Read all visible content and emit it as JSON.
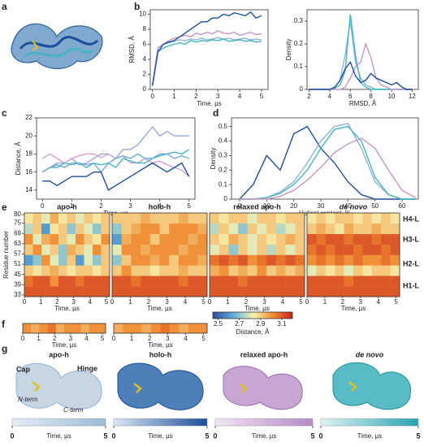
{
  "panel_labels": [
    "a",
    "b",
    "c",
    "d",
    "e",
    "f",
    "g"
  ],
  "chart_data": [
    {
      "type": "line",
      "xlabel": "Time, µs",
      "ylabel": "RMSD, Å",
      "x": [
        0,
        0.25,
        0.5,
        0.75,
        1,
        1.25,
        1.5,
        1.75,
        2,
        2.25,
        2.5,
        2.75,
        3,
        3.25,
        3.5,
        3.75,
        4,
        4.25,
        4.5,
        4.75,
        5
      ],
      "xlim": [
        -0.1,
        5.3
      ],
      "xticks": [
        0,
        1,
        2,
        3,
        4,
        5
      ],
      "ylim": [
        0,
        10.6
      ],
      "yticks": [
        0,
        2,
        4,
        6,
        8,
        10
      ],
      "series": [
        {
          "color": "#8fb3d9",
          "values": [
            0.5,
            5.5,
            6,
            6.2,
            6.4,
            6.6,
            6.5,
            6.7,
            6.6,
            6.8,
            6.6,
            6.7,
            6.9,
            6.7,
            6.8,
            6.6,
            6.7,
            6.8,
            6.6,
            6.7,
            6.6
          ]
        },
        {
          "color": "#41b6c4",
          "values": [
            0.5,
            5,
            5.5,
            5.8,
            6,
            6.2,
            6,
            6.5,
            6.3,
            6.5,
            6.4,
            6.6,
            6.5,
            6.7,
            6.4,
            6.5,
            6.6,
            6.4,
            6.5,
            6.3,
            6.4
          ]
        },
        {
          "color": "#c994c7",
          "values": [
            0.5,
            5.5,
            6,
            6.5,
            6.8,
            7,
            7.2,
            7,
            7.5,
            7.3,
            7.6,
            7.4,
            7.8,
            7.5,
            7.4,
            7.6,
            7.2,
            7.4,
            7.6,
            7.3,
            7.4
          ]
        },
        {
          "color": "#1b4f9c",
          "values": [
            0.5,
            5,
            6,
            6.3,
            6.5,
            7,
            7.5,
            8,
            8.5,
            9,
            9,
            9.5,
            9.5,
            10,
            9.8,
            10.2,
            10,
            9.8,
            10.3,
            9.5,
            9.8
          ]
        }
      ]
    },
    {
      "type": "line",
      "xlabel": "RMSD, Å",
      "ylabel": "Density",
      "x": [
        2,
        2.5,
        3,
        3.5,
        4,
        4.5,
        5,
        5.5,
        6,
        6.5,
        7,
        7.5,
        8,
        8.5,
        9,
        9.5,
        10,
        10.5,
        11,
        11.5,
        12
      ],
      "xlim": [
        1.8,
        12.6
      ],
      "xticks": [
        2,
        4,
        6,
        8,
        10,
        12
      ],
      "ylim": [
        0,
        0.35
      ],
      "yticks": [
        0,
        0.1,
        0.2,
        0.3
      ],
      "series": [
        {
          "color": "#8fb3d9",
          "values": [
            0,
            0,
            0,
            0,
            0,
            0.01,
            0.04,
            0.15,
            0.3,
            0.12,
            0.05,
            0.02,
            0.01,
            0,
            0,
            0,
            0,
            0,
            0,
            0,
            0
          ]
        },
        {
          "color": "#41b6c4",
          "values": [
            0,
            0,
            0,
            0,
            0,
            0.005,
            0.02,
            0.08,
            0.33,
            0.15,
            0.03,
            0.01,
            0,
            0,
            0,
            0,
            0,
            0,
            0,
            0,
            0
          ]
        },
        {
          "color": "#c994c7",
          "values": [
            0,
            0,
            0,
            0,
            0,
            0,
            0,
            0.01,
            0.05,
            0.1,
            0.12,
            0.2,
            0.14,
            0.05,
            0.02,
            0.01,
            0,
            0,
            0,
            0,
            0
          ]
        },
        {
          "color": "#1b4f9c",
          "values": [
            0,
            0,
            0,
            0,
            0,
            0.01,
            0.04,
            0.09,
            0.12,
            0.06,
            0.03,
            0.04,
            0.07,
            0.05,
            0.04,
            0.03,
            0.02,
            0.03,
            0.01,
            0,
            0
          ]
        }
      ]
    },
    {
      "type": "line",
      "xlabel": "Time, µs",
      "ylabel": "Distance, Å",
      "x": [
        0,
        0.25,
        0.5,
        0.75,
        1,
        1.25,
        1.5,
        1.75,
        2,
        2.25,
        2.5,
        2.75,
        3,
        3.25,
        3.5,
        3.75,
        4,
        4.25,
        4.5,
        4.75,
        5
      ],
      "xlim": [
        -0.2,
        5.2
      ],
      "xticks": [
        0,
        1,
        2,
        3,
        4,
        5
      ],
      "ylim": [
        13,
        22
      ],
      "yticks": [
        14,
        16,
        18,
        20,
        22
      ],
      "series": [
        {
          "color": "#9aa8d8",
          "values": [
            16,
            16.5,
            17,
            17,
            17.5,
            16.8,
            17,
            17.5,
            18,
            18,
            17.5,
            18.5,
            18.5,
            19,
            20,
            21,
            20,
            20.5,
            20,
            20,
            20
          ]
        },
        {
          "color": "#d4a0d0",
          "values": [
            17.5,
            18,
            17.5,
            17,
            17.5,
            17.8,
            18,
            18,
            17.6,
            18,
            17.5,
            17.8,
            17,
            17,
            17.5,
            17,
            17.2,
            16.8,
            16.5,
            16.2,
            15.5
          ]
        },
        {
          "color": "#41b6c4",
          "values": [
            16,
            16.5,
            16.5,
            17,
            16.8,
            17,
            16.5,
            17,
            16.8,
            17,
            16.5,
            17.5,
            17.2,
            17,
            17,
            17.5,
            17.8,
            18,
            18.2,
            18,
            18.5
          ]
        },
        {
          "color": "#6fa8dc",
          "values": [
            16,
            16.5,
            16.8,
            16.5,
            17,
            17,
            16.8,
            17,
            16,
            17,
            17.5,
            17.8,
            17.5,
            18,
            17.5,
            17.5,
            18,
            18,
            17.5,
            17.8,
            17.5
          ]
        },
        {
          "color": "#1b4f9c",
          "values": [
            15,
            15,
            14.5,
            15,
            15.5,
            15.5,
            15.5,
            16,
            16,
            14,
            14.5,
            15,
            15.5,
            16,
            16.5,
            17,
            16.5,
            16,
            16.5,
            17,
            15.5
          ]
        }
      ]
    },
    {
      "type": "line",
      "xlabel": "Helical content, %",
      "ylabel": "Density",
      "x": [
        0,
        5,
        10,
        15,
        20,
        25,
        30,
        35,
        40,
        45,
        50,
        55,
        60,
        65
      ],
      "xlim": [
        -3,
        66
      ],
      "xticks": [
        0,
        10,
        20,
        30,
        40,
        50,
        60
      ],
      "ylim": [
        0,
        0.56
      ],
      "yticks": [
        0,
        0.1,
        0.2,
        0.3,
        0.4,
        0.5
      ],
      "series": [
        {
          "color": "#1b4f9c",
          "values": [
            0,
            0.1,
            0.3,
            0.2,
            0.45,
            0.5,
            0.35,
            0.25,
            0.12,
            0.03,
            0,
            0,
            0,
            0
          ]
        },
        {
          "color": "#8fb3d9",
          "values": [
            0,
            0,
            0.01,
            0.05,
            0.12,
            0.25,
            0.4,
            0.5,
            0.52,
            0.35,
            0.12,
            0.03,
            0,
            0
          ]
        },
        {
          "color": "#41b6c4",
          "values": [
            0,
            0,
            0.01,
            0.04,
            0.1,
            0.2,
            0.35,
            0.48,
            0.5,
            0.4,
            0.15,
            0.03,
            0,
            0
          ]
        },
        {
          "color": "#c994c7",
          "values": [
            0,
            0,
            0,
            0.02,
            0.06,
            0.13,
            0.22,
            0.32,
            0.38,
            0.42,
            0.35,
            0.2,
            0.06,
            0.01
          ]
        }
      ]
    },
    {
      "type": "heatmap",
      "xlabel": "Time, µs",
      "ylabel": "Residue number",
      "xlim": [
        0,
        5.2
      ],
      "xticks": [
        0,
        1,
        2,
        3,
        4,
        5
      ],
      "ylim": [
        32,
        81
      ],
      "yticks": [
        33,
        39,
        45,
        51,
        57,
        63,
        69,
        75,
        80
      ],
      "helix_labels": [
        "H4-L",
        "H3-L",
        "H2-L",
        "H1-L"
      ],
      "clim": [
        2.45,
        3.2
      ],
      "colors": [
        "#2c4fa0",
        "#5fb0d8",
        "#f7f3b0",
        "#f08a30",
        "#c81e1e"
      ],
      "colorbar_ticks": [
        2.5,
        2.7,
        2.9,
        3.1
      ],
      "colorbar_label": "Distance, Å",
      "panels": [
        {
          "title": "apo-h",
          "values": [
            [
              3.1,
              3.1,
              3.1,
              3.1,
              3.1,
              3.1,
              3.1,
              3.1,
              3.1,
              3.1
            ],
            [
              3.05,
              3.1,
              3.1,
              3.0,
              3.1,
              3.1,
              3.05,
              3.1,
              3.1,
              3.1
            ],
            [
              2.9,
              2.85,
              2.9,
              2.95,
              2.9,
              2.85,
              2.9,
              2.9,
              2.85,
              2.9
            ],
            [
              2.6,
              2.7,
              3.0,
              2.8,
              2.7,
              2.9,
              2.6,
              2.8,
              2.7,
              2.9
            ],
            [
              2.9,
              3.0,
              2.8,
              2.9,
              2.7,
              2.95,
              2.9,
              2.8,
              3.0,
              2.9
            ],
            [
              3.0,
              2.8,
              2.95,
              3.0,
              2.9,
              2.8,
              3.0,
              2.9,
              2.85,
              3.0
            ],
            [
              2.75,
              2.9,
              2.6,
              2.85,
              2.9,
              2.7,
              2.9,
              2.8,
              2.7,
              2.9
            ],
            [
              2.85,
              2.9,
              2.8,
              2.95,
              2.85,
              2.9,
              2.8,
              2.9,
              2.85,
              2.9
            ]
          ]
        },
        {
          "title": "holo-h",
          "values": [
            [
              3.1,
              3.1,
              3.1,
              3.1,
              3.1,
              3.1,
              3.1,
              3.1,
              3.1,
              3.1
            ],
            [
              3.1,
              3.1,
              3.05,
              3.1,
              3.1,
              3.1,
              3.1,
              3.05,
              3.1,
              3.1
            ],
            [
              2.9,
              3.0,
              2.9,
              2.9,
              2.85,
              2.9,
              2.9,
              2.95,
              2.9,
              2.9
            ],
            [
              2.7,
              2.9,
              3.0,
              3.0,
              2.95,
              3.0,
              2.9,
              3.0,
              3.0,
              2.95
            ],
            [
              2.8,
              3.0,
              3.0,
              2.95,
              3.0,
              3.0,
              3.0,
              2.95,
              3.0,
              3.0
            ],
            [
              2.6,
              2.95,
              3.0,
              3.0,
              2.9,
              3.0,
              3.0,
              3.0,
              2.95,
              3.0
            ],
            [
              2.7,
              2.9,
              2.95,
              3.0,
              3.0,
              2.9,
              3.0,
              3.0,
              3.0,
              2.95
            ],
            [
              2.9,
              2.9,
              2.9,
              2.95,
              2.9,
              2.9,
              2.9,
              2.95,
              2.9,
              2.9
            ]
          ]
        },
        {
          "title": "relaxed apo-h",
          "values": [
            [
              3.1,
              3.1,
              3.1,
              3.1,
              3.1,
              3.1,
              3.1,
              3.1,
              3.1,
              3.1
            ],
            [
              3.1,
              3.1,
              3.1,
              3.05,
              3.1,
              3.1,
              3.1,
              3.1,
              3.1,
              3.1
            ],
            [
              2.95,
              3.0,
              2.9,
              2.95,
              2.9,
              3.0,
              2.9,
              2.95,
              2.9,
              2.95
            ],
            [
              3.05,
              3.1,
              3.05,
              3.1,
              3.0,
              3.05,
              3.1,
              3.05,
              3.1,
              3.05
            ],
            [
              2.8,
              2.9,
              2.7,
              2.9,
              2.8,
              2.9,
              2.75,
              2.9,
              2.8,
              2.9
            ],
            [
              2.9,
              2.85,
              2.95,
              2.9,
              2.8,
              2.9,
              2.85,
              2.9,
              2.95,
              2.9
            ],
            [
              2.75,
              2.9,
              2.8,
              2.7,
              2.9,
              2.8,
              2.9,
              2.75,
              2.8,
              2.9
            ],
            [
              2.9,
              2.85,
              2.9,
              2.9,
              2.8,
              2.9,
              2.9,
              2.85,
              2.9,
              2.9
            ]
          ]
        },
        {
          "title": "de novo",
          "values": [
            [
              3.1,
              3.1,
              3.1,
              3.1,
              3.1,
              3.1,
              3.1,
              3.1,
              3.1,
              3.1
            ],
            [
              3.1,
              3.1,
              3.1,
              3.1,
              3.05,
              3.1,
              3.1,
              3.1,
              3.1,
              3.1
            ],
            [
              2.8,
              2.9,
              2.85,
              2.9,
              2.8,
              2.9,
              2.85,
              2.9,
              2.9,
              2.85
            ],
            [
              3.0,
              3.05,
              3.0,
              3.05,
              3.0,
              3.05,
              3.0,
              3.0,
              3.05,
              3.0
            ],
            [
              3.05,
              3.1,
              3.05,
              3.1,
              3.1,
              3.05,
              3.1,
              3.1,
              3.05,
              3.1
            ],
            [
              3.1,
              3.05,
              3.1,
              3.1,
              3.05,
              3.1,
              3.1,
              3.05,
              3.1,
              3.1
            ],
            [
              2.9,
              2.95,
              2.9,
              2.85,
              2.95,
              2.9,
              2.9,
              2.95,
              2.9,
              2.9
            ],
            [
              2.85,
              2.9,
              2.85,
              2.9,
              2.9,
              2.85,
              2.9,
              2.85,
              2.9,
              2.85
            ]
          ]
        }
      ]
    },
    {
      "type": "strip",
      "xlabel": "Time, µs",
      "xlim": [
        0,
        5.2
      ],
      "xticks": [
        0,
        1,
        2,
        3,
        4,
        5
      ],
      "panels": [
        {
          "values": [
            3.0,
            2.95,
            3.0,
            3.05,
            2.95,
            3.0,
            3.0,
            2.95,
            3.0,
            3.0
          ]
        },
        {
          "values": [
            2.95,
            3.0,
            3.0,
            2.95,
            3.0,
            3.05,
            3.0,
            2.95,
            3.0,
            3.0
          ]
        }
      ]
    }
  ],
  "structures": {
    "colorbar_ticks": [
      0,
      5
    ],
    "colorbar_label": "Time, µs",
    "annotations": [
      "Cap",
      "Hinge",
      "N-term",
      "C-term"
    ],
    "panels": [
      {
        "title": "apo-h",
        "colors": [
          "#e6eef7",
          "#9bbbd8"
        ]
      },
      {
        "title": "holo-h",
        "colors": [
          "#dbe6f3",
          "#1b4f9c"
        ]
      },
      {
        "title": "relaxed apo-h",
        "colors": [
          "#f3e6f2",
          "#b48ac6"
        ]
      },
      {
        "title": "de novo",
        "colors": [
          "#dff3f4",
          "#2aa3b0"
        ]
      }
    ]
  }
}
